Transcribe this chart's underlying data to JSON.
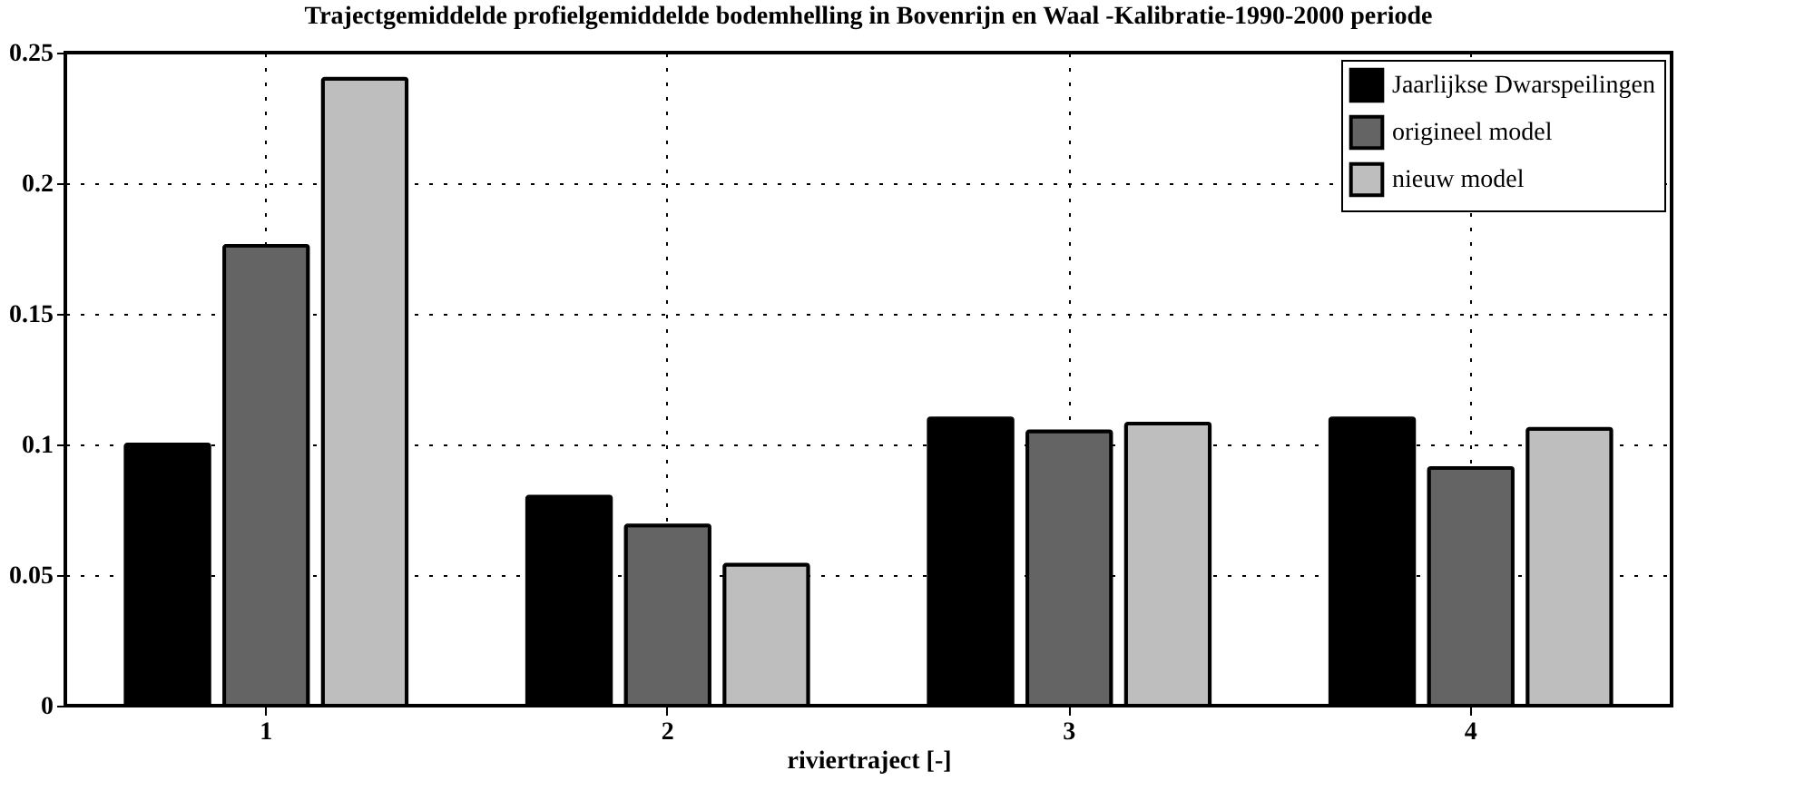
{
  "chart_data": {
    "type": "bar",
    "title": "Trajectgemiddelde profielgemiddelde bodemhelling in Bovenrijn en Waal -Kalibratie-1990-2000 periode",
    "xlabel": "riviertraject [-]",
    "categories": [
      "1",
      "2",
      "3",
      "4"
    ],
    "series": [
      {
        "name": "Jaarlijkse Dwarspeilingen",
        "color": "#000000",
        "values": [
          0.1,
          0.08,
          0.11,
          0.11
        ]
      },
      {
        "name": "origineel model",
        "color": "#646464",
        "values": [
          0.176,
          0.069,
          0.105,
          0.091
        ]
      },
      {
        "name": "nieuw model",
        "color": "#bebebe",
        "values": [
          0.24,
          0.054,
          0.108,
          0.106
        ]
      }
    ],
    "ylim": [
      0,
      0.25
    ],
    "yticks": [
      0,
      0.05,
      0.1,
      0.15,
      0.2,
      0.25
    ],
    "grid": true,
    "legend": "top right"
  }
}
